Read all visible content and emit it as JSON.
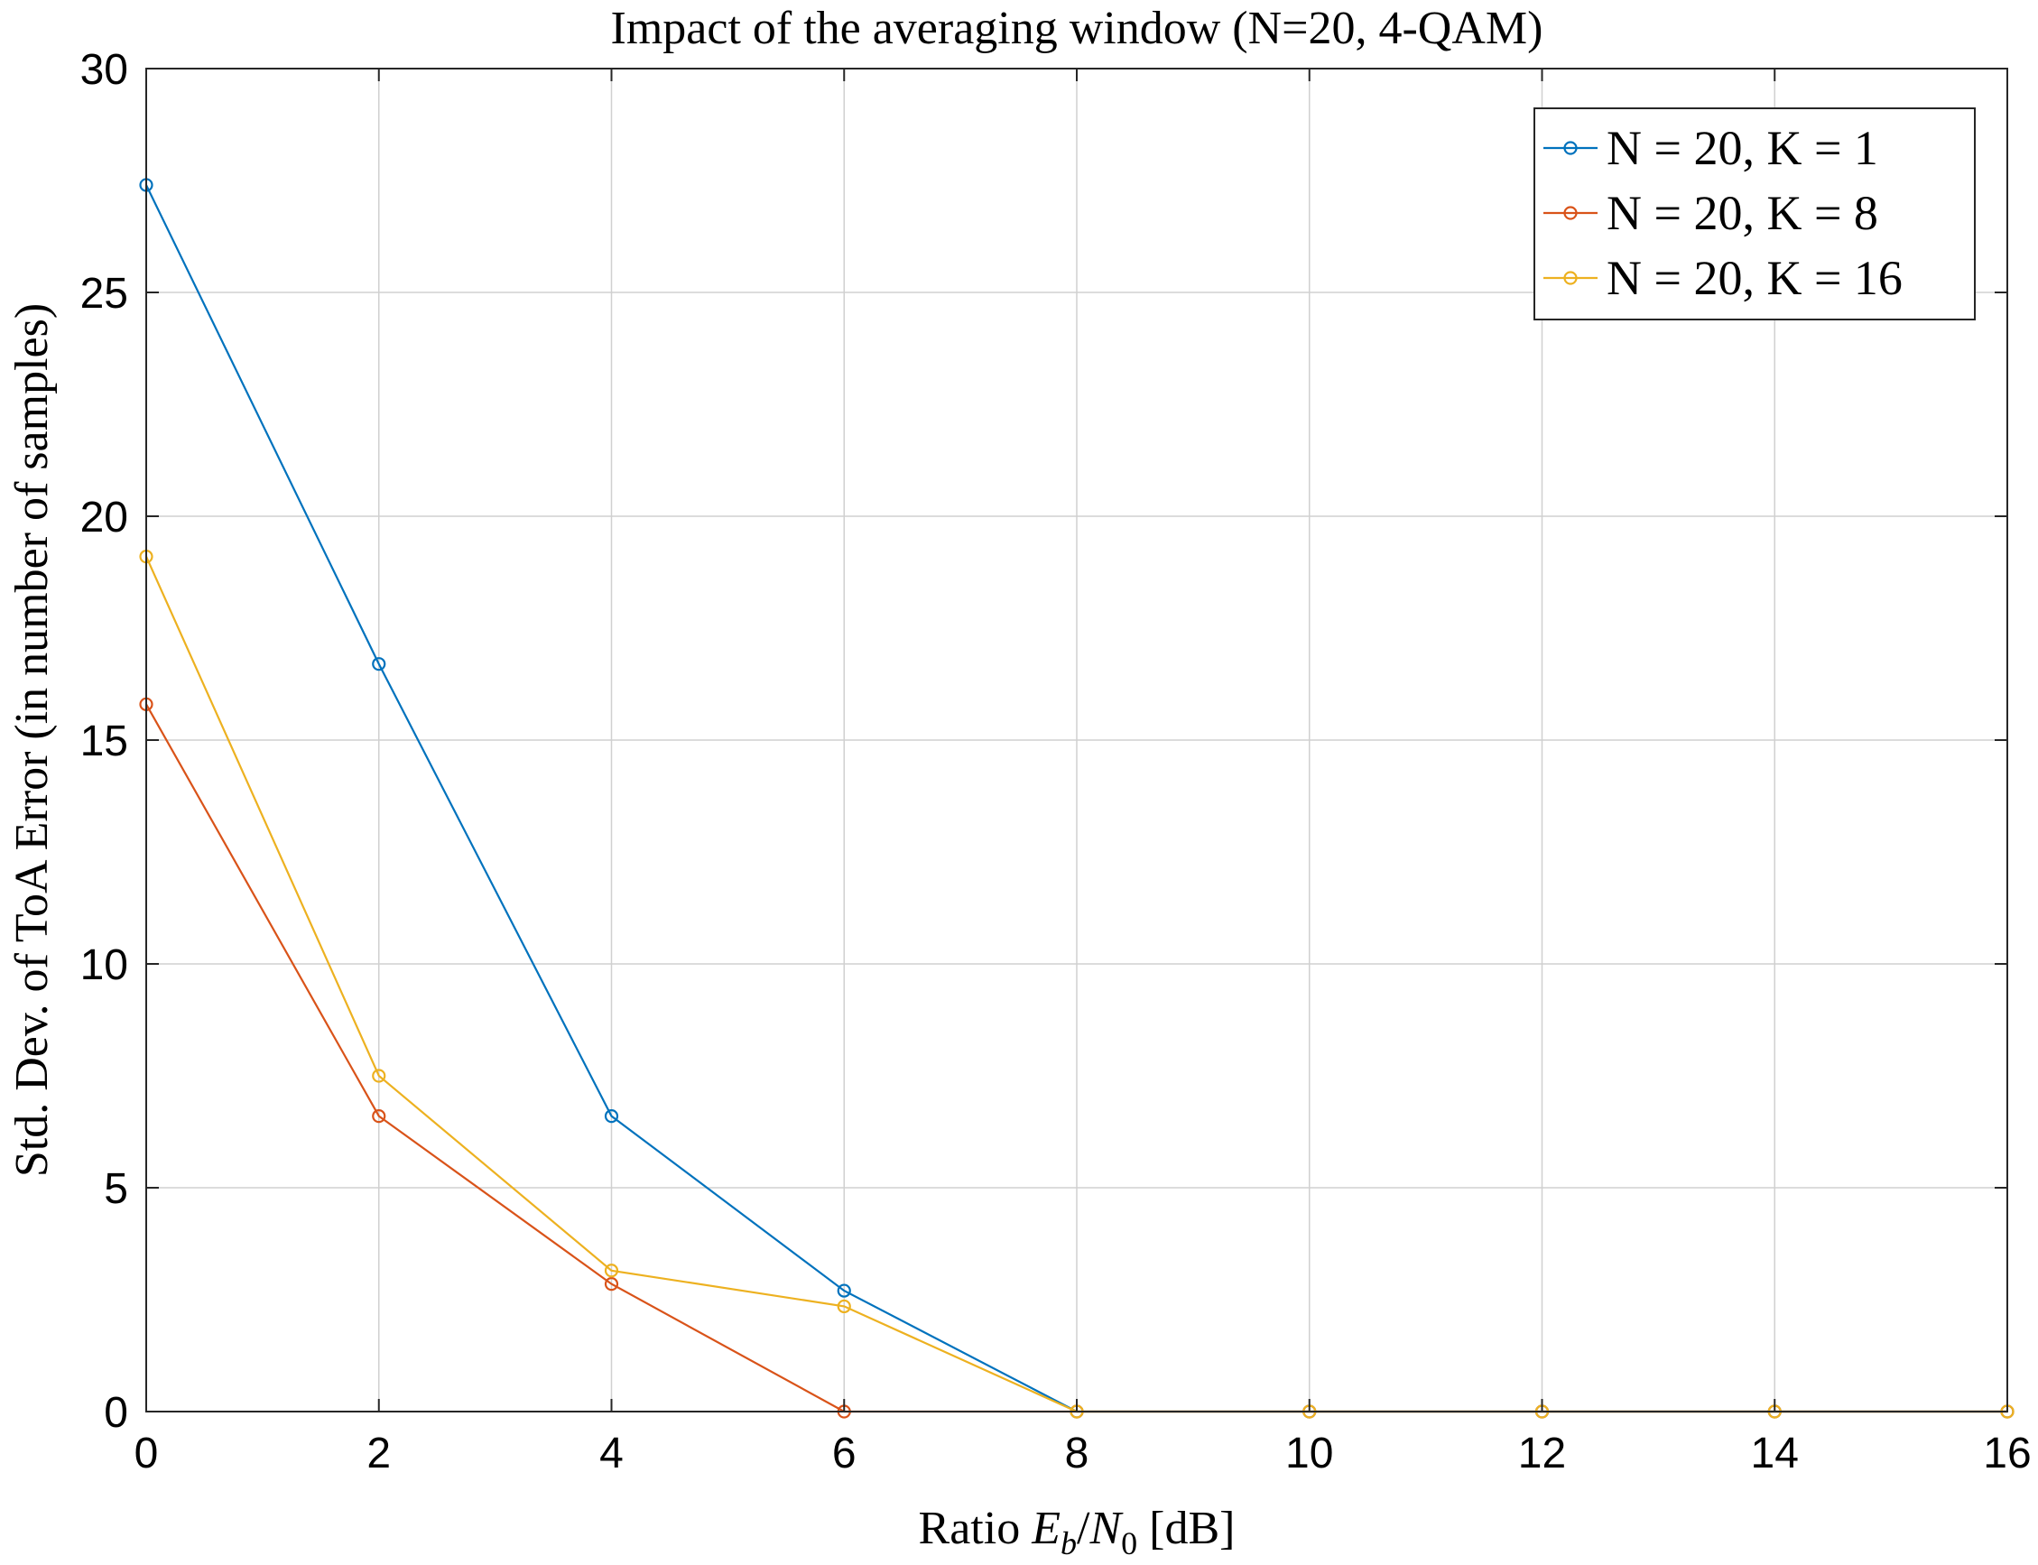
{
  "chart_data": {
    "type": "line",
    "title": "Impact of the averaging window (N=20, 4-QAM)",
    "xlabel": {
      "prefix": "Ratio ",
      "e": "E",
      "e_sub": "b",
      "slash": "/",
      "n": "N",
      "n_sub": "0",
      "suffix": " [dB]"
    },
    "ylabel": "Std. Dev. of ToA Error (in number of samples)",
    "xlim": [
      0,
      16
    ],
    "ylim": [
      0,
      30
    ],
    "xticks": [
      0,
      2,
      4,
      6,
      8,
      10,
      12,
      14,
      16
    ],
    "yticks": [
      0,
      5,
      10,
      15,
      20,
      25,
      30
    ],
    "grid": true,
    "legend_position": "top-right",
    "x": [
      0,
      2,
      4,
      6,
      8,
      10,
      12,
      14,
      16
    ],
    "series": [
      {
        "name": "N = 20, K = 1",
        "color": "#0072BD",
        "values": [
          27.4,
          16.7,
          6.6,
          2.7,
          0,
          0,
          0,
          0,
          0
        ]
      },
      {
        "name": "N = 20, K = 8",
        "color": "#D95319",
        "values": [
          15.8,
          6.6,
          2.85,
          0,
          0,
          0,
          0,
          0,
          0
        ]
      },
      {
        "name": "N = 20, K = 16",
        "color": "#EDB120",
        "values": [
          19.1,
          7.5,
          3.15,
          2.35,
          0,
          0,
          0,
          0,
          0
        ]
      }
    ]
  }
}
